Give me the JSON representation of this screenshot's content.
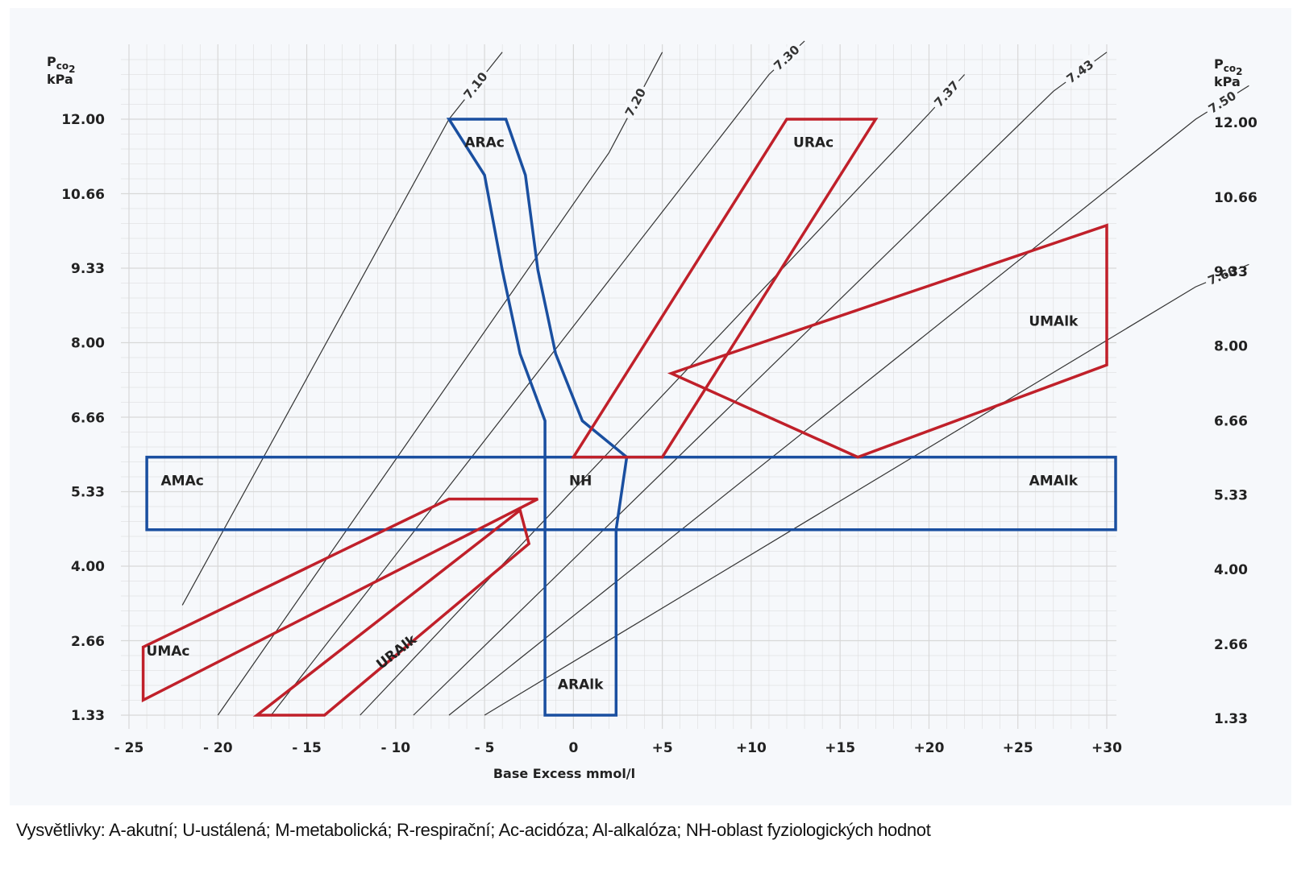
{
  "chart_data": {
    "type": "diagram-chart",
    "title": "",
    "xlabel": "Base Excess mmol/l",
    "ylabel_left": "Pco2 kPa",
    "ylabel_right": "Pco2 kPa",
    "xlim": [
      -25,
      30
    ],
    "ylim": [
      1.33,
      12.0
    ],
    "x_ticks": [
      "- 25",
      "- 20",
      "- 15",
      "- 10",
      "- 5",
      "0",
      "+5",
      "+10",
      "+15",
      "+20",
      "+25",
      "+30"
    ],
    "x_tick_values": [
      -25,
      -20,
      -15,
      -10,
      -5,
      0,
      5,
      10,
      15,
      20,
      25,
      30
    ],
    "y_ticks": [
      "1.33",
      "2.66",
      "4.00",
      "5.33",
      "6.66",
      "8.00",
      "9.33",
      "10.66",
      "12.00"
    ],
    "y_tick_values": [
      1.33,
      2.66,
      4.0,
      5.33,
      6.66,
      8.0,
      9.33,
      10.66,
      12.0
    ],
    "grid": true,
    "colors": {
      "acute": "#1a4fa0",
      "steady": "#c0202a",
      "isoline": "#333333",
      "grid": "#d8d8d8"
    },
    "isolines": [
      {
        "label": "7.10",
        "points": [
          [
            -22,
            3.3
          ],
          [
            -7,
            12.0
          ],
          [
            -4,
            13.2
          ]
        ]
      },
      {
        "label": "7.20",
        "points": [
          [
            -20,
            1.33
          ],
          [
            2,
            11.4
          ],
          [
            5,
            13.2
          ]
        ]
      },
      {
        "label": "7.30",
        "points": [
          [
            -17,
            1.33
          ],
          [
            11,
            12.8
          ],
          [
            13,
            13.4
          ]
        ]
      },
      {
        "label": "7.37",
        "points": [
          [
            -12,
            1.33
          ],
          [
            20,
            12.1
          ],
          [
            22,
            12.8
          ]
        ]
      },
      {
        "label": "7.43",
        "points": [
          [
            -9,
            1.33
          ],
          [
            27,
            12.5
          ],
          [
            30,
            13.2
          ]
        ]
      },
      {
        "label": "7.50",
        "points": [
          [
            -7,
            1.33
          ],
          [
            35,
            12.0
          ],
          [
            38,
            12.6
          ]
        ]
      },
      {
        "label": "7.60",
        "points": [
          [
            -5,
            1.33
          ],
          [
            35,
            9.0
          ],
          [
            38,
            9.4
          ]
        ]
      }
    ],
    "zones": [
      {
        "name": "ARAc",
        "group": "acute",
        "label_at": [
          -5,
          11.5
        ],
        "points": [
          [
            -7,
            12.0
          ],
          [
            -3.8,
            12.0
          ],
          [
            -2.7,
            11.0
          ],
          [
            -2.0,
            9.3
          ],
          [
            -1.0,
            7.8
          ],
          [
            0.5,
            6.6
          ],
          [
            3.0,
            5.95
          ],
          [
            -1.6,
            5.95
          ],
          [
            -1.6,
            6.6
          ],
          [
            -3.0,
            7.8
          ],
          [
            -4.0,
            9.3
          ],
          [
            -5.0,
            11.0
          ]
        ]
      },
      {
        "name": "AMAc",
        "group": "acute",
        "label_at": [
          -22,
          5.45
        ],
        "points": [
          [
            -24,
            5.95
          ],
          [
            -1.6,
            5.95
          ],
          [
            -1.6,
            4.65
          ],
          [
            -24,
            4.65
          ]
        ]
      },
      {
        "name": "NH",
        "group": "acute",
        "label_at": [
          0.4,
          5.45
        ],
        "points": []
      },
      {
        "name": "AMAlk",
        "group": "acute",
        "label_at": [
          27,
          5.45
        ],
        "points": [
          [
            3.0,
            5.95
          ],
          [
            30.5,
            5.95
          ],
          [
            30.5,
            4.65
          ],
          [
            2.4,
            4.65
          ]
        ]
      },
      {
        "name": "ARAlk",
        "group": "acute",
        "label_at": [
          0.4,
          1.8
        ],
        "points": [
          [
            -1.6,
            4.65
          ],
          [
            2.4,
            4.65
          ],
          [
            2.4,
            1.33
          ],
          [
            -1.6,
            1.33
          ]
        ]
      },
      {
        "name": "URAc",
        "group": "steady",
        "label_at": [
          13.5,
          11.5
        ],
        "points": [
          [
            0,
            5.95
          ],
          [
            12,
            12.0
          ],
          [
            17,
            12.0
          ],
          [
            5,
            5.95
          ]
        ]
      },
      {
        "name": "UMAlk",
        "group": "steady",
        "label_at": [
          27,
          8.3
        ],
        "points": [
          [
            5.5,
            7.45
          ],
          [
            30,
            10.1
          ],
          [
            30,
            7.6
          ],
          [
            16,
            5.95
          ]
        ]
      },
      {
        "name": "UMAc",
        "group": "steady",
        "label_at": [
          -22.8,
          2.4
        ],
        "points": [
          [
            -24.2,
            2.55
          ],
          [
            -7,
            5.2
          ],
          [
            -2,
            5.2
          ],
          [
            -24.2,
            1.6
          ]
        ]
      },
      {
        "name": "URAlk",
        "group": "steady",
        "label_at": [
          -9.8,
          2.4
        ],
        "points": [
          [
            -17.8,
            1.33
          ],
          [
            -3,
            5.0
          ],
          [
            -2.5,
            4.4
          ],
          [
            -14,
            1.33
          ]
        ]
      }
    ]
  },
  "legend_text": "Vysvětlivky: A-akutní; U-ustálená; M-metabolická; R-respirační; Ac-acidóza; Al-alkalóza; NH-oblast fyziologických hodnot",
  "y_axis_unit_left": {
    "main": "P",
    "sub": "co",
    "sub2": "2",
    "unit": "kPa"
  },
  "y_axis_unit_right": {
    "main": "P",
    "sub": "co",
    "sub2": "2",
    "unit": "kPa"
  }
}
